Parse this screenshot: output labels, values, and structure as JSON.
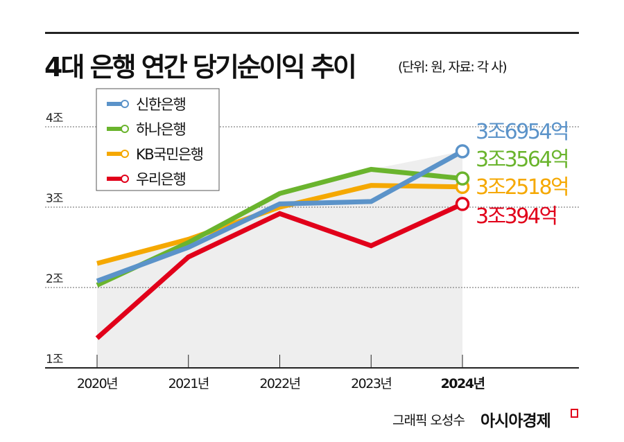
{
  "header": {
    "title": "4대 은행 연간 당기순이익 추이",
    "unit_note": "(단위: 원, 자료: 각 사)"
  },
  "footer": {
    "credit": "그래픽 오성수",
    "brand": "아시아경제"
  },
  "chart_data": {
    "type": "line",
    "title": "4대 은행 연간 당기순이익 추이",
    "xlabel": "",
    "ylabel": "",
    "categories": [
      "2020년",
      "2021년",
      "2022년",
      "2023년",
      "2024년"
    ],
    "y_ticks": [
      {
        "value": 1,
        "label": "1조"
      },
      {
        "value": 2,
        "label": "2조"
      },
      {
        "value": 3,
        "label": "3조"
      },
      {
        "value": 4,
        "label": "4조"
      }
    ],
    "ylim": [
      1,
      4
    ],
    "y_unit": "조 원",
    "grid": "horizontal dotted",
    "legend_position": "top-left",
    "shaded_area": "under the highest line, 2020–2024",
    "series": [
      {
        "name": "신한은행",
        "color": "#5b93c9",
        "values": [
          2.08,
          2.5,
          3.04,
          3.07,
          3.6954
        ],
        "end_label": "3조6954억"
      },
      {
        "name": "하나은행",
        "color": "#6ab42d",
        "values": [
          2.03,
          2.56,
          3.17,
          3.47,
          3.3564
        ],
        "end_label": "3조3564억"
      },
      {
        "name": "KB국민은행",
        "color": "#f5a800",
        "values": [
          2.3,
          2.6,
          3.0,
          3.27,
          3.2518
        ],
        "end_label": "3조2518억"
      },
      {
        "name": "우리은행",
        "color": "#e1001a",
        "values": [
          1.37,
          2.38,
          2.92,
          2.52,
          3.0394
        ],
        "end_label": "3조394억"
      }
    ]
  }
}
